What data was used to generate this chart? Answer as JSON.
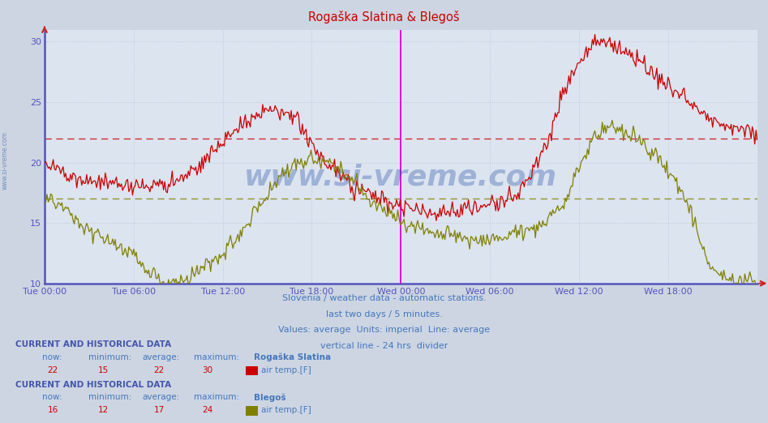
{
  "title": "Rogaška Slatina & Blegoš",
  "bg_color": "#cdd5e3",
  "plot_bg_color": "#dce4f0",
  "grid_color": "#c0c8d8",
  "border_color": "#5555bb",
  "title_color": "#cc0000",
  "red_color": "#cc0000",
  "olive_color": "#808000",
  "red_avg": 22.0,
  "olive_avg": 17.0,
  "divider_color": "#dd00dd",
  "ylim": [
    10,
    31
  ],
  "y_ticks": [
    10,
    15,
    20,
    25,
    30
  ],
  "x_tick_hours": [
    0,
    6,
    12,
    18,
    24,
    30,
    36,
    42,
    48
  ],
  "x_tick_labels": [
    "Tue 00:00",
    "Tue 06:00",
    "Tue 12:00",
    "Tue 18:00",
    "Wed 00:00",
    "Wed 06:00",
    "Wed 12:00",
    "Wed 18:00",
    ""
  ],
  "footer_line1": "Slovenia / weather data - automatic stations.",
  "footer_line2": "last two days / 5 minutes.",
  "footer_line3": "Values: average  Units: imperial  Line: average",
  "footer_line4": "vertical line - 24 hrs  divider",
  "watermark": "www.si-vreme.com",
  "side_text": "www.si-vreme.com",
  "label1_header": "CURRENT AND HISTORICAL DATA",
  "label1_name": "Rogaška Slatina",
  "station1_now": "22",
  "station1_min": "15",
  "station1_avg": "22",
  "station1_max": "30",
  "label1_type": "air temp.[F]",
  "label2_header": "CURRENT AND HISTORICAL DATA",
  "label2_name": "Blegoš",
  "station2_now": "16",
  "station2_min": "12",
  "station2_avg": "17",
  "station2_max": "24",
  "label2_type": "air temp.[F]"
}
